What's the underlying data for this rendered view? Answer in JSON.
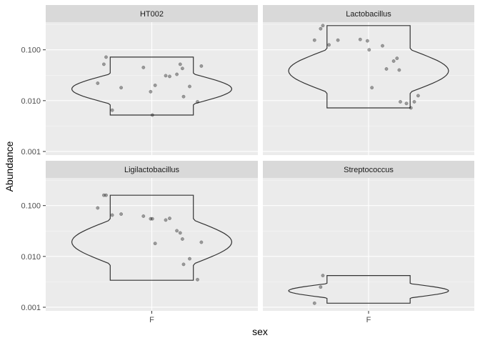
{
  "chart_data": {
    "type": "violin",
    "xlabel": "sex",
    "ylabel": "Abundance",
    "y_scale": "log10",
    "ylim": [
      0.001,
      0.3
    ],
    "y_ticks": [
      0.001,
      0.01,
      0.1
    ],
    "y_tick_labels": [
      "0.001",
      "0.010",
      "0.100"
    ],
    "x_categories": [
      "F"
    ],
    "grid": true,
    "panels": [
      {
        "title": "HT002",
        "violin_range": [
          0.0052,
          0.072
        ],
        "points": [
          {
            "x": "F",
            "y": 0.072
          },
          {
            "x": "F",
            "y": 0.052
          },
          {
            "x": "F",
            "y": 0.022
          },
          {
            "x": "F",
            "y": 0.018
          },
          {
            "x": "F",
            "y": 0.0065
          },
          {
            "x": "F",
            "y": 0.045
          },
          {
            "x": "F",
            "y": 0.015
          },
          {
            "x": "F",
            "y": 0.0052
          },
          {
            "x": "F",
            "y": 0.031
          },
          {
            "x": "F",
            "y": 0.03
          },
          {
            "x": "F",
            "y": 0.033
          },
          {
            "x": "F",
            "y": 0.052
          },
          {
            "x": "F",
            "y": 0.043
          },
          {
            "x": "F",
            "y": 0.02
          },
          {
            "x": "F",
            "y": 0.048
          },
          {
            "x": "F",
            "y": 0.019
          },
          {
            "x": "F",
            "y": 0.012
          },
          {
            "x": "F",
            "y": 0.0095
          }
        ]
      },
      {
        "title": "Lactobacillus",
        "violin_range": [
          0.0072,
          0.3
        ],
        "points": [
          {
            "x": "F",
            "y": 0.3
          },
          {
            "x": "F",
            "y": 0.26
          },
          {
            "x": "F",
            "y": 0.155
          },
          {
            "x": "F",
            "y": 0.155
          },
          {
            "x": "F",
            "y": 0.125
          },
          {
            "x": "F",
            "y": 0.16
          },
          {
            "x": "F",
            "y": 0.15
          },
          {
            "x": "F",
            "y": 0.1
          },
          {
            "x": "F",
            "y": 0.12
          },
          {
            "x": "F",
            "y": 0.042
          },
          {
            "x": "F",
            "y": 0.06
          },
          {
            "x": "F",
            "y": 0.068
          },
          {
            "x": "F",
            "y": 0.04
          },
          {
            "x": "F",
            "y": 0.018
          },
          {
            "x": "F",
            "y": 0.0125
          },
          {
            "x": "F",
            "y": 0.0088
          },
          {
            "x": "F",
            "y": 0.0095
          },
          {
            "x": "F",
            "y": 0.0095
          },
          {
            "x": "F",
            "y": 0.0072
          }
        ]
      },
      {
        "title": "Ligilactobacillus",
        "violin_range": [
          0.0034,
          0.16
        ],
        "points": [
          {
            "x": "F",
            "y": 0.16
          },
          {
            "x": "F",
            "y": 0.16
          },
          {
            "x": "F",
            "y": 0.09
          },
          {
            "x": "F",
            "y": 0.068
          },
          {
            "x": "F",
            "y": 0.065
          },
          {
            "x": "F",
            "y": 0.062
          },
          {
            "x": "F",
            "y": 0.055
          },
          {
            "x": "F",
            "y": 0.055
          },
          {
            "x": "F",
            "y": 0.052
          },
          {
            "x": "F",
            "y": 0.056
          },
          {
            "x": "F",
            "y": 0.032
          },
          {
            "x": "F",
            "y": 0.029
          },
          {
            "x": "F",
            "y": 0.022
          },
          {
            "x": "F",
            "y": 0.018
          },
          {
            "x": "F",
            "y": 0.019
          },
          {
            "x": "F",
            "y": 0.009
          },
          {
            "x": "F",
            "y": 0.007
          },
          {
            "x": "F",
            "y": 0.0035
          }
        ]
      },
      {
        "title": "Streptococcus",
        "violin_range": [
          0.0012,
          0.0042
        ],
        "points": [
          {
            "x": "F",
            "y": 0.0042
          },
          {
            "x": "F",
            "y": 0.0025
          },
          {
            "x": "F",
            "y": 0.0012
          }
        ]
      }
    ]
  }
}
